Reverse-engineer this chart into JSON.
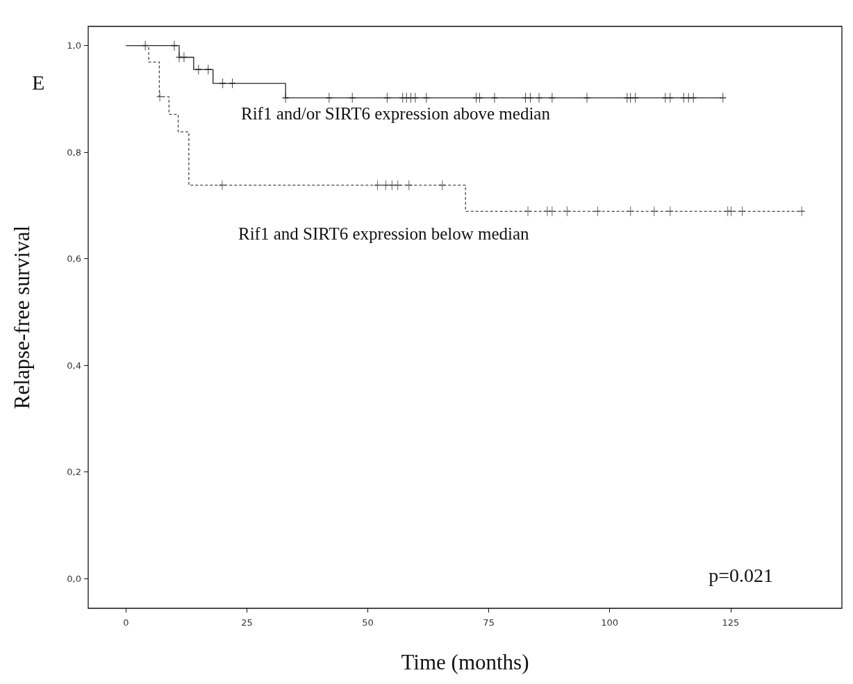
{
  "chart_data": {
    "type": "step",
    "xlabel": "Time (months)",
    "ylabel": "Relapse-free survival",
    "xlim": [
      -7.8,
      148
    ],
    "xticks": [
      0,
      25,
      50,
      75,
      100,
      125
    ],
    "ylim": [
      -0.056,
      1.036
    ],
    "yticks": [
      {
        "value": 0,
        "label": "0,0"
      },
      {
        "value": 0.2,
        "label": "0,2"
      },
      {
        "value": 0.4,
        "label": "0,4"
      },
      {
        "value": 0.6,
        "label": "0,6"
      },
      {
        "value": 0.8,
        "label": "0,8"
      },
      {
        "value": 1,
        "label": "1,0"
      }
    ],
    "grid": false,
    "series": [
      {
        "type": "step",
        "color": "#222222",
        "line_style": "solid",
        "marker": "none",
        "x": [
          0,
          11,
          14,
          18,
          33,
          123
        ],
        "values": [
          1,
          0.978,
          0.955,
          0.929,
          0.902,
          0.902
        ]
      },
      {
        "type": "scatter",
        "color": "#222222",
        "marker": "cross",
        "x": [
          4,
          10,
          11,
          12,
          15,
          17,
          20,
          22,
          33,
          42,
          46.8,
          54,
          57.2,
          58,
          58.9,
          59.8,
          62.1,
          72.4,
          73.1,
          76.2,
          82.6,
          83.6,
          85.4,
          88.1,
          95.3,
          103.6,
          104.3,
          105.3,
          111.5,
          112.5,
          115.3,
          116.3,
          117.3,
          123.4
        ],
        "values": [
          1,
          1,
          0.978,
          0.978,
          0.955,
          0.955,
          0.929,
          0.929,
          0.902,
          0.902,
          0.902,
          0.902,
          0.902,
          0.902,
          0.902,
          0.902,
          0.902,
          0.902,
          0.902,
          0.902,
          0.902,
          0.902,
          0.902,
          0.902,
          0.902,
          0.902,
          0.902,
          0.902,
          0.902,
          0.902,
          0.902,
          0.902,
          0.902,
          0.902
        ]
      },
      {
        "type": "step",
        "color": "#444444",
        "line_style": "dashed",
        "marker": "none",
        "x": [
          0,
          4.7,
          6.9,
          8.9,
          10.8,
          13,
          70.2,
          140
        ],
        "values": [
          1,
          0.969,
          0.904,
          0.871,
          0.838,
          0.738,
          0.689,
          0.689
        ]
      },
      {
        "type": "scatter",
        "color": "#444444",
        "marker": "cross",
        "x": [
          7,
          19.9,
          52,
          53.7,
          55,
          56.2,
          58.5,
          65.4,
          83.1,
          87.1,
          88.1,
          91.2,
          97.5,
          104.3,
          109.2,
          112.5,
          124.4,
          125.1,
          127.4,
          139.7
        ],
        "values": [
          0.904,
          0.738,
          0.738,
          0.738,
          0.738,
          0.738,
          0.738,
          0.738,
          0.689,
          0.689,
          0.689,
          0.689,
          0.689,
          0.689,
          0.689,
          0.689,
          0.689,
          0.689,
          0.689,
          0.689
        ]
      }
    ],
    "annotations": [
      "E",
      "p=0.021",
      "Rif1 and/or SIRT6 expression above median",
      "Rif1 and SIRT6 expression below median"
    ]
  }
}
